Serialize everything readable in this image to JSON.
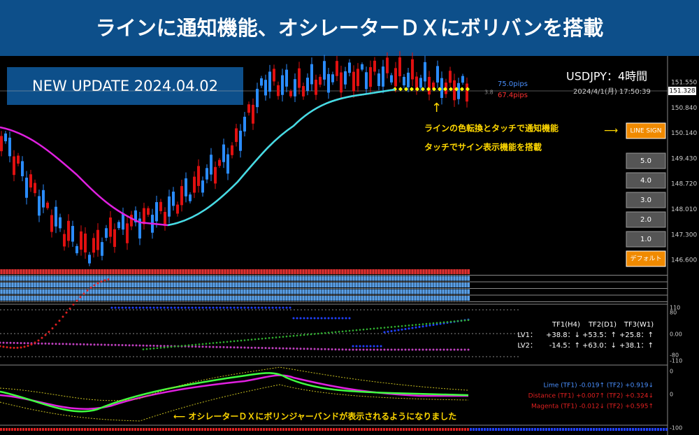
{
  "header": {
    "title": "ラインに通知機能、オシレーターＤＸにボリバンを搭載"
  },
  "badge": "NEW UPDATE 2024.04.02",
  "chart": {
    "symbol": "USDJPY：4時間",
    "datetime": "2024/4/1(月) 17:50:39",
    "pips_up": "75.0pips",
    "pips_down": "67.4pips",
    "spread": "3.8",
    "price_axis": [
      "151.550",
      "150.840",
      "150.140",
      "149.430",
      "148.720",
      "148.010",
      "147.300",
      "146.600"
    ],
    "current_price": "151.328"
  },
  "annotations": {
    "line_notice": [
      "ラインの色転換とタッチで通知機能",
      "タッチでサイン表示機能を搭載"
    ],
    "bb_notice": "⟵ オシレーターＤＸにボリンジャーバンドが表示されるようになりました"
  },
  "buttons": {
    "line_sign": "LINE SIGN",
    "levels": [
      "5.0",
      "4.0",
      "3.0",
      "2.0",
      "1.0"
    ],
    "default": "デフォルト"
  },
  "oscillator": {
    "axis": [
      "110",
      "80",
      "0.00",
      "-80",
      "-110"
    ],
    "table": {
      "header": [
        "TF1(H4)",
        "TF2(D1)",
        "TF3(W1)"
      ],
      "rows": [
        [
          "LV1：",
          "+38.8：↓",
          "+53.5：↑",
          "+25.8：↑"
        ],
        [
          "LV2：",
          "-14.5：↑",
          "+63.0：↓",
          "+38.1：↑"
        ]
      ]
    }
  },
  "bands": {
    "axis": [
      "0",
      "0",
      "-100"
    ],
    "legend": [
      "Lime (TF1) -0.019↑ (TF2) +0.919↓",
      "Distance (TF1) +0.007↑ (TF2) +0.324↓",
      "Magenta (TF1) -0.012↓ (TF2) +0.595↑"
    ]
  }
}
